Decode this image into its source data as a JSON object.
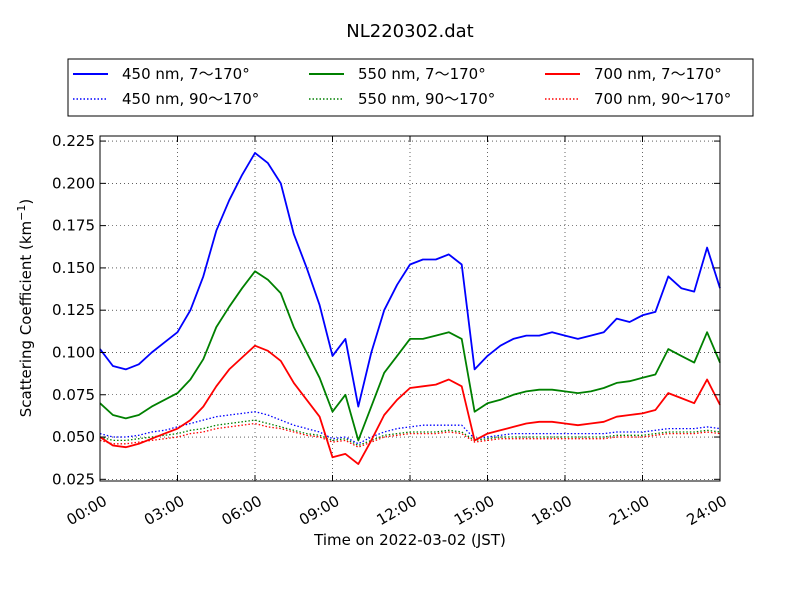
{
  "chart_data": {
    "type": "line",
    "title": "NL220302.dat",
    "xlabel": "Time on 2022-03-02 (JST)",
    "ylabel": "Scattering Coefficient (km",
    "ylabel_sup": "−1",
    "ylabel_close": ")",
    "xlim": [
      "00:00",
      "24:00"
    ],
    "ylim": [
      0.024,
      0.228
    ],
    "grid": true,
    "legend_position": "top-center",
    "x_ticks": [
      "00:00",
      "03:00",
      "06:00",
      "09:00",
      "12:00",
      "15:00",
      "18:00",
      "21:00",
      "24:00"
    ],
    "y_ticks": [
      "0.025",
      "0.050",
      "0.075",
      "0.100",
      "0.125",
      "0.150",
      "0.175",
      "0.200",
      "0.225"
    ],
    "x": [
      "00:00",
      "00:30",
      "01:00",
      "01:30",
      "02:00",
      "02:30",
      "03:00",
      "03:30",
      "04:00",
      "04:30",
      "05:00",
      "05:30",
      "06:00",
      "06:30",
      "07:00",
      "07:30",
      "08:00",
      "08:30",
      "09:00",
      "09:30",
      "10:00",
      "10:30",
      "11:00",
      "11:30",
      "12:00",
      "12:30",
      "13:00",
      "13:30",
      "14:00",
      "14:30",
      "15:00",
      "15:30",
      "16:00",
      "16:30",
      "17:00",
      "17:30",
      "18:00",
      "18:30",
      "19:00",
      "19:30",
      "20:00",
      "20:30",
      "21:00",
      "21:30",
      "22:00",
      "22:30",
      "23:00",
      "23:30",
      "24:00"
    ],
    "series": [
      {
        "name": "450 nm, 7～170°",
        "color": "#0000ff",
        "style": "solid",
        "values": [
          0.102,
          0.092,
          0.09,
          0.093,
          0.1,
          0.106,
          0.112,
          0.125,
          0.145,
          0.172,
          0.19,
          0.205,
          0.218,
          0.212,
          0.2,
          0.17,
          0.15,
          0.128,
          0.098,
          0.108,
          0.068,
          0.1,
          0.125,
          0.14,
          0.152,
          0.155,
          0.155,
          0.158,
          0.152,
          0.09,
          0.098,
          0.104,
          0.108,
          0.11,
          0.11,
          0.112,
          0.11,
          0.108,
          0.11,
          0.112,
          0.12,
          0.118,
          0.122,
          0.124,
          0.145,
          0.138,
          0.136,
          0.162,
          0.138
        ]
      },
      {
        "name": "450 nm, 90～170°",
        "color": "#0000ff",
        "style": "dotted",
        "values": [
          0.052,
          0.05,
          0.05,
          0.051,
          0.053,
          0.054,
          0.056,
          0.058,
          0.06,
          0.062,
          0.063,
          0.064,
          0.065,
          0.063,
          0.06,
          0.057,
          0.055,
          0.053,
          0.049,
          0.05,
          0.046,
          0.05,
          0.053,
          0.055,
          0.056,
          0.057,
          0.057,
          0.057,
          0.057,
          0.049,
          0.05,
          0.051,
          0.052,
          0.052,
          0.052,
          0.052,
          0.052,
          0.052,
          0.052,
          0.052,
          0.053,
          0.053,
          0.053,
          0.054,
          0.055,
          0.055,
          0.055,
          0.056,
          0.055
        ]
      },
      {
        "name": "550 nm, 7～170°",
        "color": "#008000",
        "style": "solid",
        "values": [
          0.07,
          0.063,
          0.061,
          0.063,
          0.068,
          0.072,
          0.076,
          0.084,
          0.096,
          0.115,
          0.127,
          0.138,
          0.148,
          0.143,
          0.135,
          0.115,
          0.1,
          0.085,
          0.065,
          0.075,
          0.048,
          0.068,
          0.088,
          0.098,
          0.108,
          0.108,
          0.11,
          0.112,
          0.108,
          0.065,
          0.07,
          0.072,
          0.075,
          0.077,
          0.078,
          0.078,
          0.077,
          0.076,
          0.077,
          0.079,
          0.082,
          0.083,
          0.085,
          0.087,
          0.102,
          0.098,
          0.094,
          0.112,
          0.094
        ]
      },
      {
        "name": "550 nm, 90～170°",
        "color": "#008000",
        "style": "dotted",
        "values": [
          0.05,
          0.048,
          0.048,
          0.049,
          0.05,
          0.051,
          0.052,
          0.054,
          0.055,
          0.057,
          0.058,
          0.059,
          0.06,
          0.058,
          0.056,
          0.054,
          0.052,
          0.051,
          0.048,
          0.049,
          0.045,
          0.048,
          0.051,
          0.052,
          0.053,
          0.053,
          0.053,
          0.054,
          0.053,
          0.048,
          0.049,
          0.05,
          0.05,
          0.05,
          0.05,
          0.05,
          0.05,
          0.05,
          0.05,
          0.05,
          0.051,
          0.051,
          0.051,
          0.052,
          0.053,
          0.053,
          0.053,
          0.054,
          0.053
        ]
      },
      {
        "name": "700 nm, 7～170°",
        "color": "#ff0000",
        "style": "solid",
        "values": [
          0.05,
          0.045,
          0.044,
          0.046,
          0.049,
          0.052,
          0.055,
          0.06,
          0.068,
          0.08,
          0.09,
          0.097,
          0.104,
          0.101,
          0.095,
          0.082,
          0.072,
          0.062,
          0.038,
          0.04,
          0.034,
          0.048,
          0.063,
          0.072,
          0.079,
          0.08,
          0.081,
          0.084,
          0.08,
          0.048,
          0.052,
          0.054,
          0.056,
          0.058,
          0.059,
          0.059,
          0.058,
          0.057,
          0.058,
          0.059,
          0.062,
          0.063,
          0.064,
          0.066,
          0.076,
          0.073,
          0.07,
          0.084,
          0.069
        ]
      },
      {
        "name": "700 nm, 90～170°",
        "color": "#ff0000",
        "style": "dotted",
        "values": [
          0.048,
          0.046,
          0.046,
          0.047,
          0.048,
          0.049,
          0.05,
          0.052,
          0.053,
          0.055,
          0.056,
          0.057,
          0.058,
          0.056,
          0.055,
          0.053,
          0.051,
          0.05,
          0.047,
          0.048,
          0.044,
          0.047,
          0.05,
          0.051,
          0.052,
          0.052,
          0.052,
          0.053,
          0.052,
          0.047,
          0.048,
          0.049,
          0.049,
          0.049,
          0.049,
          0.049,
          0.049,
          0.049,
          0.049,
          0.049,
          0.05,
          0.05,
          0.05,
          0.051,
          0.052,
          0.052,
          0.052,
          0.053,
          0.052
        ]
      }
    ]
  }
}
